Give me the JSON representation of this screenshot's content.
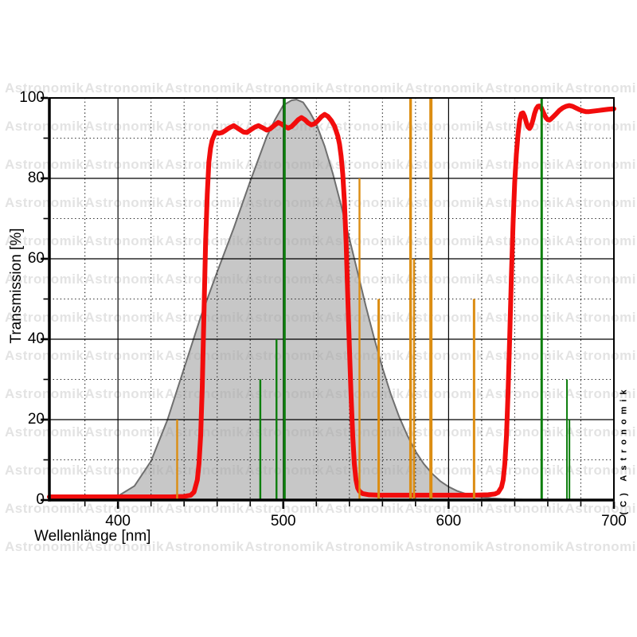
{
  "watermark": {
    "text": "Astronomik",
    "color": "#e3e3e3"
  },
  "copyright_text": "(C) Astronomik",
  "x_axis": {
    "label": "Wellenlänge [nm]",
    "tick_values": [
      400,
      500,
      600,
      700
    ],
    "minor_tick_step": 20
  },
  "y_axis": {
    "label": "Transmission [%]",
    "tick_values": [
      0,
      20,
      40,
      60,
      80,
      100
    ],
    "minor_tick_step": 10
  },
  "chart_data": {
    "type": "line",
    "xlabel": "Wellenlänge [nm]",
    "ylabel": "Transmission [%]",
    "xlim": [
      358.5,
      700
    ],
    "ylim": [
      0,
      100
    ],
    "grid": {
      "major_x": [
        400,
        500,
        600,
        700
      ],
      "major_y": [
        0,
        20,
        40,
        60,
        80,
        100
      ],
      "minor_x_step": 20,
      "minor_y_step": 10,
      "style": "solid major, dotted minor"
    },
    "series": [
      {
        "name": "filter_transmission",
        "type": "line",
        "color": "#f20c0c",
        "stroke_width": 6,
        "points": [
          [
            358.5,
            0.8
          ],
          [
            380,
            0.8
          ],
          [
            410,
            0.8
          ],
          [
            432,
            0.8
          ],
          [
            440,
            0.9
          ],
          [
            444,
            1.2
          ],
          [
            446,
            2
          ],
          [
            448,
            5
          ],
          [
            449,
            9
          ],
          [
            450,
            16
          ],
          [
            451,
            28
          ],
          [
            452,
            46
          ],
          [
            453,
            64
          ],
          [
            454,
            76
          ],
          [
            455,
            84
          ],
          [
            456,
            87.5
          ],
          [
            457,
            89.5
          ],
          [
            459,
            91.5
          ],
          [
            461,
            91.2
          ],
          [
            463,
            91.4
          ],
          [
            465,
            91.9
          ],
          [
            467,
            92.5
          ],
          [
            470,
            93.1
          ],
          [
            473,
            92.3
          ],
          [
            476,
            91.5
          ],
          [
            478,
            91.4
          ],
          [
            480,
            92
          ],
          [
            483,
            92.8
          ],
          [
            485,
            93.1
          ],
          [
            487,
            92.7
          ],
          [
            490,
            92
          ],
          [
            492,
            92.3
          ],
          [
            495,
            93.3
          ],
          [
            497,
            93.9
          ],
          [
            499,
            93.5
          ],
          [
            501,
            92.9
          ],
          [
            503,
            92.5
          ],
          [
            505,
            92.9
          ],
          [
            507,
            93.7
          ],
          [
            509,
            94.6
          ],
          [
            511,
            95.1
          ],
          [
            513,
            94.6
          ],
          [
            515,
            93.8
          ],
          [
            517,
            93.3
          ],
          [
            519,
            93.6
          ],
          [
            521,
            94.4
          ],
          [
            523,
            95.3
          ],
          [
            525,
            95.9
          ],
          [
            527,
            95.4
          ],
          [
            529,
            94.4
          ],
          [
            531,
            93
          ],
          [
            533,
            90.5
          ],
          [
            534,
            88.5
          ],
          [
            535,
            85.5
          ],
          [
            536,
            81
          ],
          [
            537,
            74
          ],
          [
            538,
            64
          ],
          [
            539,
            51
          ],
          [
            540,
            38
          ],
          [
            541,
            26
          ],
          [
            542,
            16
          ],
          [
            543,
            9
          ],
          [
            544,
            5
          ],
          [
            545,
            3
          ],
          [
            546,
            2.2
          ],
          [
            548,
            1.6
          ],
          [
            552,
            1.3
          ],
          [
            558,
            1.2
          ],
          [
            575,
            1.2
          ],
          [
            600,
            1.2
          ],
          [
            615,
            1.2
          ],
          [
            624,
            1.3
          ],
          [
            628,
            1.5
          ],
          [
            630,
            1.9
          ],
          [
            632,
            3.2
          ],
          [
            633,
            5
          ],
          [
            634,
            9
          ],
          [
            635,
            16
          ],
          [
            636,
            27
          ],
          [
            637,
            41
          ],
          [
            638,
            56
          ],
          [
            639,
            69
          ],
          [
            640,
            79
          ],
          [
            641,
            86
          ],
          [
            642,
            91
          ],
          [
            643,
            94.5
          ],
          [
            644,
            96.1
          ],
          [
            645,
            96.3
          ],
          [
            646,
            95.4
          ],
          [
            647,
            93.9
          ],
          [
            648,
            92.8
          ],
          [
            649,
            92.4
          ],
          [
            650,
            93.1
          ],
          [
            651,
            94.5
          ],
          [
            652,
            96.1
          ],
          [
            653,
            97.3
          ],
          [
            654,
            97.9
          ],
          [
            655,
            98
          ],
          [
            656,
            97.6
          ],
          [
            657,
            96.7
          ],
          [
            658,
            95.8
          ],
          [
            659,
            95
          ],
          [
            660,
            94.6
          ],
          [
            661,
            94.5
          ],
          [
            662,
            94.8
          ],
          [
            663,
            95.2
          ],
          [
            665,
            96
          ],
          [
            667,
            96.9
          ],
          [
            669,
            97.5
          ],
          [
            671,
            97.9
          ],
          [
            673,
            98.1
          ],
          [
            675,
            97.9
          ],
          [
            677,
            97.5
          ],
          [
            679,
            97.1
          ],
          [
            681,
            96.8
          ],
          [
            683,
            96.6
          ],
          [
            685,
            96.6
          ],
          [
            687,
            96.7
          ],
          [
            689,
            96.8
          ],
          [
            691,
            96.9
          ],
          [
            693,
            97
          ],
          [
            695,
            97.1
          ],
          [
            697,
            97.2
          ],
          [
            700,
            97.3
          ]
        ]
      },
      {
        "name": "eye_sensitivity",
        "type": "area",
        "fill": "rgba(161,161,161,0.6)",
        "stroke": "#6f6f6f",
        "stroke_width": 2,
        "points": [
          [
            382,
            0
          ],
          [
            390,
            0.3
          ],
          [
            400,
            1
          ],
          [
            410,
            3.5
          ],
          [
            420,
            9.7
          ],
          [
            430,
            20
          ],
          [
            440,
            32.8
          ],
          [
            450,
            45.5
          ],
          [
            460,
            56.7
          ],
          [
            470,
            67.6
          ],
          [
            480,
            79.3
          ],
          [
            490,
            90.4
          ],
          [
            495,
            94.6
          ],
          [
            500,
            98.2
          ],
          [
            505,
            99.4
          ],
          [
            508,
            99.6
          ],
          [
            512,
            98.9
          ],
          [
            516,
            96.5
          ],
          [
            520,
            93.5
          ],
          [
            525,
            88
          ],
          [
            530,
            81.1
          ],
          [
            535,
            73.3
          ],
          [
            540,
            65
          ],
          [
            545,
            56.6
          ],
          [
            550,
            48.1
          ],
          [
            555,
            40.2
          ],
          [
            560,
            32.9
          ],
          [
            565,
            26.4
          ],
          [
            570,
            20.8
          ],
          [
            575,
            16.1
          ],
          [
            580,
            12.1
          ],
          [
            585,
            9
          ],
          [
            590,
            6.6
          ],
          [
            595,
            4.7
          ],
          [
            600,
            3.3
          ],
          [
            605,
            2.3
          ],
          [
            610,
            1.6
          ],
          [
            615,
            1.1
          ],
          [
            620,
            0.7
          ],
          [
            626,
            0.45
          ],
          [
            632,
            0.3
          ],
          [
            640,
            0.15
          ],
          [
            648,
            0.07
          ],
          [
            656,
            0.02
          ],
          [
            662,
            0
          ]
        ]
      }
    ],
    "emission_lines": {
      "color": "#0c7e0c",
      "lines": [
        {
          "wavelength": 486.1,
          "height": 30,
          "width": 2.4
        },
        {
          "wavelength": 495.9,
          "height": 40,
          "width": 2.4
        },
        {
          "wavelength": 500.7,
          "height": 100,
          "width": 3.2
        },
        {
          "wavelength": 656.3,
          "height": 100,
          "width": 3
        },
        {
          "wavelength": 671.6,
          "height": 30,
          "width": 2
        },
        {
          "wavelength": 673.1,
          "height": 20,
          "width": 2
        }
      ]
    },
    "light_pollution_lines": {
      "color": "#dc8d12",
      "lines": [
        {
          "wavelength": 435.8,
          "height": 20,
          "width": 2.4
        },
        {
          "wavelength": 546.1,
          "height": 80,
          "width": 2.4
        },
        {
          "wavelength": 557.7,
          "height": 50,
          "width": 3
        },
        {
          "wavelength": 577.0,
          "height": 100,
          "width": 3.4
        },
        {
          "wavelength": 579.1,
          "height": 60,
          "width": 2.6
        },
        {
          "wavelength": 589.3,
          "height": 100,
          "width": 4
        },
        {
          "wavelength": 615.4,
          "height": 50,
          "width": 3
        }
      ]
    }
  }
}
